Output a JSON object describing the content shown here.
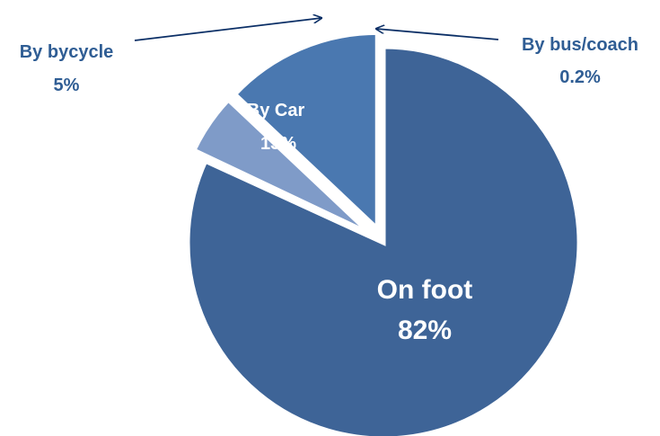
{
  "chart_data": {
    "type": "pie",
    "title": "",
    "slices": [
      {
        "label": "On foot",
        "value": 82,
        "value_label": "82%",
        "color": "#3e6497",
        "exploded": false
      },
      {
        "label": "By bus/coach",
        "value": 0.2,
        "value_label": "0.2%",
        "color": "#b8c7de",
        "exploded": true
      },
      {
        "label": "By bycycle",
        "value": 5,
        "value_label": "5%",
        "color": "#7f9bc8",
        "exploded": true
      },
      {
        "label": "By Car",
        "value": 13,
        "value_label": "13%",
        "color": "#4a78b0",
        "exploded": true
      }
    ],
    "label_color_outside": "#2f5d94",
    "label_color_inside": "#ffffff",
    "legend": "none"
  }
}
